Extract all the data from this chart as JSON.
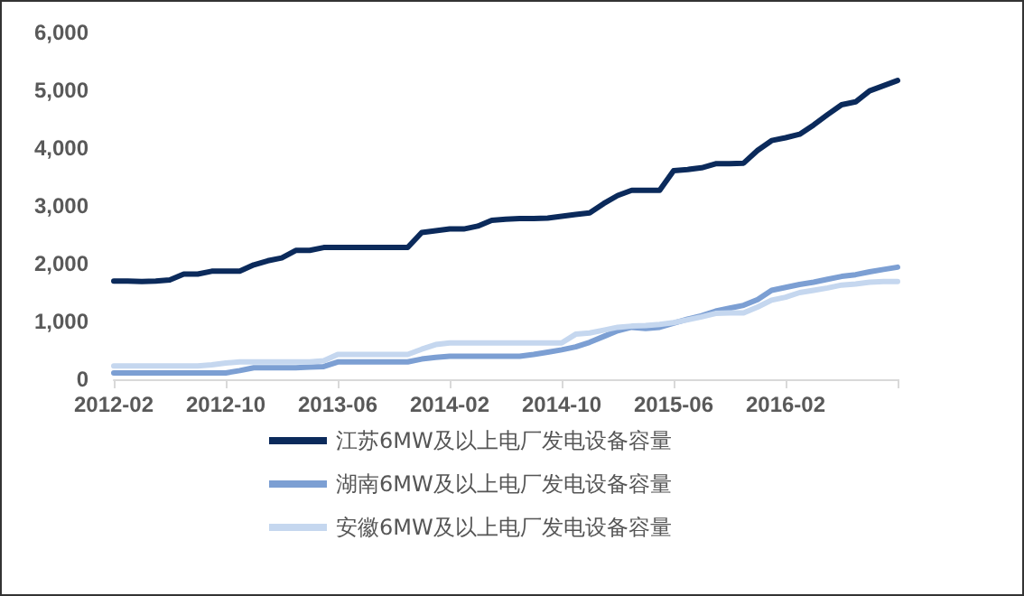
{
  "chart_data": {
    "type": "line",
    "categories": [
      "2012-02",
      null,
      null,
      null,
      null,
      null,
      null,
      null,
      "2012-10",
      null,
      null,
      null,
      null,
      null,
      null,
      null,
      "2013-06",
      null,
      null,
      null,
      null,
      null,
      null,
      null,
      "2014-02",
      null,
      null,
      null,
      null,
      null,
      null,
      null,
      "2014-10",
      null,
      null,
      null,
      null,
      null,
      null,
      null,
      "2015-06",
      null,
      null,
      null,
      null,
      null,
      null,
      null,
      "2016-02",
      null,
      null,
      null,
      null,
      null,
      null,
      null,
      null
    ],
    "series": [
      {
        "name": "江苏6MW及以上电厂发电设备容量",
        "color": "#0b2a5b",
        "values": [
          1700,
          1700,
          1690,
          1700,
          1720,
          1820,
          1820,
          1870,
          1870,
          1870,
          1980,
          2050,
          2100,
          2230,
          2230,
          2280,
          2280,
          2280,
          2280,
          2280,
          2280,
          2280,
          2540,
          2570,
          2600,
          2600,
          2650,
          2750,
          2770,
          2780,
          2780,
          2790,
          2820,
          2850,
          2880,
          3040,
          3180,
          3270,
          3270,
          3270,
          3610,
          3630,
          3660,
          3730,
          3730,
          3740,
          3960,
          4130,
          4180,
          4240,
          4400,
          4580,
          4750,
          4800,
          4990,
          5080,
          5170
        ]
      },
      {
        "name": "湖南6MW及以上电厂发电设备容量",
        "color": "#7c9fd3",
        "values": [
          110,
          110,
          110,
          110,
          110,
          110,
          110,
          110,
          110,
          150,
          200,
          200,
          200,
          200,
          210,
          220,
          300,
          300,
          300,
          300,
          300,
          300,
          350,
          380,
          400,
          400,
          400,
          400,
          400,
          400,
          430,
          470,
          510,
          560,
          640,
          740,
          840,
          900,
          880,
          900,
          970,
          1040,
          1100,
          1180,
          1230,
          1280,
          1380,
          1540,
          1590,
          1640,
          1680,
          1730,
          1780,
          1810,
          1860,
          1900,
          1940
        ]
      },
      {
        "name": "安徽6MW及以上电厂发电设备容量",
        "color": "#c5d7ef",
        "values": [
          230,
          230,
          230,
          230,
          230,
          230,
          230,
          250,
          280,
          300,
          300,
          300,
          300,
          300,
          300,
          320,
          430,
          430,
          430,
          430,
          430,
          430,
          520,
          600,
          630,
          630,
          630,
          630,
          630,
          630,
          630,
          630,
          630,
          780,
          800,
          850,
          900,
          920,
          930,
          950,
          980,
          1030,
          1080,
          1140,
          1150,
          1150,
          1250,
          1370,
          1420,
          1500,
          1540,
          1580,
          1630,
          1650,
          1680,
          1690,
          1690
        ]
      }
    ],
    "ylim": [
      0,
      6000
    ],
    "yticks": [
      0,
      {
        "value": 1000,
        "label": "1,000"
      },
      {
        "value": 2000,
        "label": "2,000"
      },
      {
        "value": 3000,
        "label": "3,000"
      },
      {
        "value": 4000,
        "label": "4,000"
      },
      {
        "value": 5000,
        "label": "5,000"
      },
      {
        "value": 6000,
        "label": "6,000"
      }
    ],
    "grid": false,
    "legend": "bottom",
    "marker": "none",
    "line_style": "solid"
  }
}
